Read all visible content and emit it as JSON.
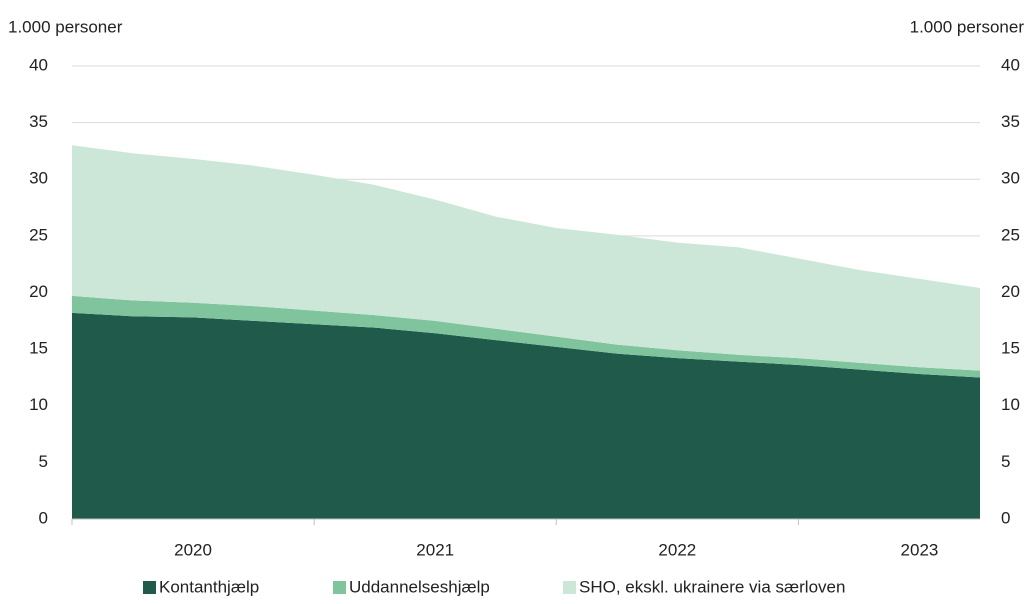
{
  "chart_data": {
    "type": "stacked_area",
    "y_label": "1.000 personer",
    "y2_label": "1.000 personer",
    "categories": [
      null,
      null,
      "2020",
      null,
      null,
      null,
      "2021",
      null,
      null,
      null,
      "2022",
      null,
      null,
      null,
      "2023",
      null
    ],
    "series": [
      {
        "name": "Kontanthjælp",
        "color": "#1f5a4b",
        "values": [
          18.2,
          17.9,
          17.8,
          17.5,
          17.2,
          16.9,
          16.4,
          15.8,
          15.2,
          14.6,
          14.2,
          13.9,
          13.6,
          13.2,
          12.8,
          12.5
        ]
      },
      {
        "name": "Uddannelseshjælp",
        "color": "#7fc49c",
        "values": [
          1.5,
          1.4,
          1.3,
          1.3,
          1.2,
          1.1,
          1.1,
          1.0,
          0.9,
          0.8,
          0.7,
          0.6,
          0.6,
          0.6,
          0.6,
          0.6
        ]
      },
      {
        "name": "SHO, ekskl. ukrainere via særloven",
        "color": "#cce7d7",
        "values": [
          13.3,
          13.0,
          12.7,
          12.4,
          12.0,
          11.5,
          10.7,
          9.9,
          9.6,
          9.7,
          9.5,
          9.5,
          8.8,
          8.2,
          7.8,
          7.3
        ]
      }
    ],
    "ylim": [
      0,
      40
    ],
    "yticks": [
      0,
      5,
      10,
      15,
      20,
      25,
      30,
      35,
      40
    ],
    "y2lim": [
      0,
      40
    ],
    "y2ticks": [
      0,
      5,
      10,
      15,
      20,
      25,
      30,
      35,
      40
    ],
    "grid": true,
    "legend": "bottom"
  }
}
